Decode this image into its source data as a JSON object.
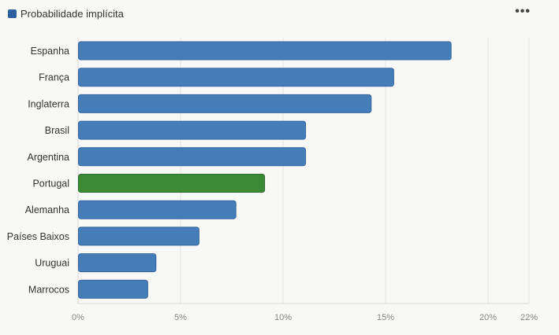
{
  "legend": {
    "label": "Probabilidade implícita",
    "color": "#2a5fa0"
  },
  "menu_icon": "more-horizontal-icon",
  "menu_glyph": "•••",
  "chart_data": {
    "type": "bar",
    "orientation": "horizontal",
    "categories": [
      "Espanha",
      "França",
      "Inglaterra",
      "Brasil",
      "Argentina",
      "Portugal",
      "Alemanha",
      "Países Baixos",
      "Uruguai",
      "Marrocos"
    ],
    "series": [
      {
        "name": "Probabilidade implícita",
        "values": [
          18.2,
          15.4,
          14.3,
          11.1,
          11.1,
          9.1,
          7.7,
          5.9,
          3.8,
          3.4
        ]
      }
    ],
    "colors": {
      "default": "#457db8",
      "highlight": "#3a8a36",
      "highlight_category": "Portugal"
    },
    "xlim": [
      0,
      22
    ],
    "xticks": [
      {
        "value": 0,
        "label": "0%"
      },
      {
        "value": 5,
        "label": "5%"
      },
      {
        "value": 10,
        "label": "10%"
      },
      {
        "value": 15,
        "label": "15%"
      },
      {
        "value": 20,
        "label": "20%"
      },
      {
        "value": 22,
        "label": "22%"
      }
    ],
    "grid": true
  }
}
